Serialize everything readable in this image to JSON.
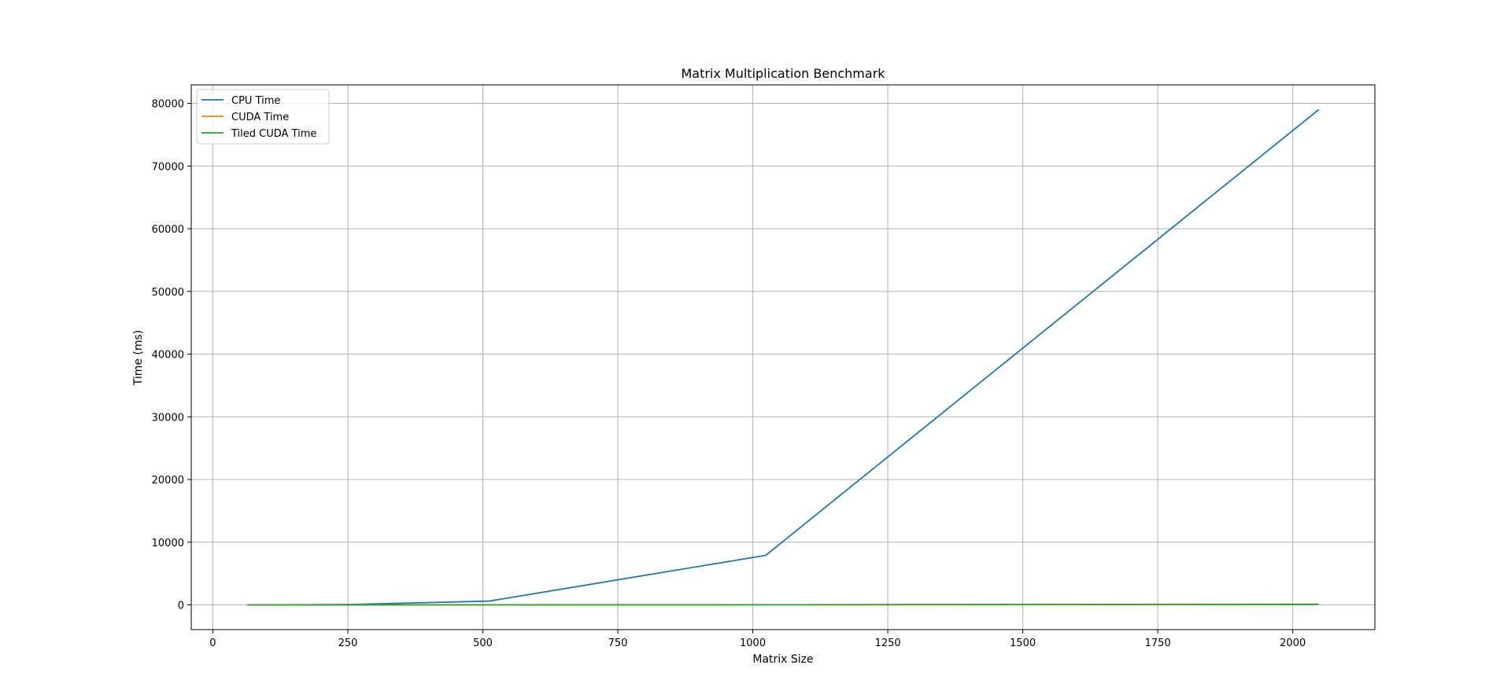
{
  "chart_data": {
    "type": "line",
    "title": "Matrix Multiplication Benchmark",
    "xlabel": "Matrix Size",
    "ylabel": "Time (ms)",
    "xlim": [
      -40,
      2152
    ],
    "ylim": [
      -3950,
      82950
    ],
    "xticks": [
      0,
      250,
      500,
      750,
      1000,
      1250,
      1500,
      1750,
      2000
    ],
    "yticks": [
      0,
      10000,
      20000,
      30000,
      40000,
      50000,
      60000,
      70000,
      80000
    ],
    "grid": true,
    "legend_position": "top-left",
    "series": [
      {
        "name": "CPU Time",
        "color": "#1f77b4",
        "x": [
          64,
          128,
          256,
          512,
          1024,
          2048
        ],
        "y": [
          1,
          6,
          60,
          600,
          7900,
          79000
        ]
      },
      {
        "name": "CUDA Time",
        "color": "#ff7f0e",
        "x": [
          64,
          128,
          256,
          512,
          1024,
          2048
        ],
        "y": [
          0.2,
          0.3,
          0.8,
          3,
          15,
          110
        ]
      },
      {
        "name": "Tiled CUDA Time",
        "color": "#2ca02c",
        "x": [
          64,
          128,
          256,
          512,
          1024,
          2048
        ],
        "y": [
          0.1,
          0.2,
          0.5,
          2,
          10,
          75
        ]
      }
    ]
  }
}
